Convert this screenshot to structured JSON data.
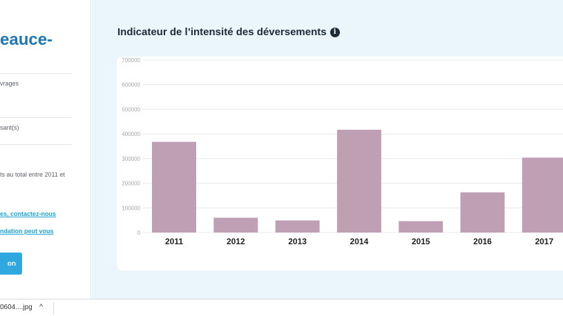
{
  "sidebar": {
    "title": "eauce-",
    "line1": "vrages",
    "line2": "sant(s)",
    "line3": "ts au total entre 2011 et",
    "link1": "es, contactez-nous",
    "link2": "ndation peut vous",
    "button_label": "on"
  },
  "section": {
    "title": "Indicateur de l’intensité des déversements",
    "info_glyph": "i"
  },
  "download_bar": {
    "file_name": "0604....jpg",
    "chevron": "^"
  },
  "colors": {
    "bar": "#bf9fb3",
    "grid": "#e8e8e8",
    "axis_tick_text": "#a6a6a6",
    "category_text": "#1f1f1f"
  },
  "chart_data": {
    "type": "bar",
    "title": "Indicateur de l’intensité des déversements",
    "xlabel": "",
    "ylabel": "",
    "categories": [
      "2011",
      "2012",
      "2013",
      "2014",
      "2015",
      "2016",
      "2017"
    ],
    "values": [
      368000,
      60000,
      49000,
      417000,
      46000,
      163000,
      304000
    ],
    "ylim": [
      0,
      700000
    ],
    "yticks": [
      "0",
      "100000",
      "200000",
      "300000",
      "400000",
      "500000",
      "600000",
      "700000"
    ],
    "grid": true,
    "legend": "none"
  }
}
